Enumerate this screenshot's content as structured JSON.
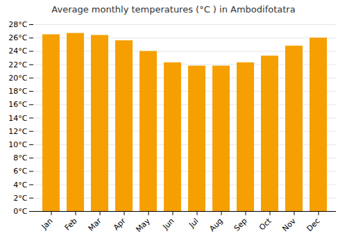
{
  "chart_data": {
    "type": "bar",
    "title": "Average monthly temperatures (°C ) in Ambodifotatra",
    "categories": [
      "Jan",
      "Feb",
      "Mar",
      "Apr",
      "May",
      "Jun",
      "Jul",
      "Aug",
      "Sep",
      "Oct",
      "Nov",
      "Dec"
    ],
    "values": [
      26.5,
      26.7,
      26.4,
      25.6,
      24.0,
      22.3,
      21.8,
      21.8,
      22.3,
      23.3,
      24.8,
      26.0
    ],
    "color": "#F5A000",
    "ylim": [
      0,
      28
    ],
    "yticks": [
      {
        "value": 0,
        "label": "0°C"
      },
      {
        "value": 2,
        "label": "2°C"
      },
      {
        "value": 4,
        "label": "4°C"
      },
      {
        "value": 6,
        "label": "6°C"
      },
      {
        "value": 8,
        "label": "8°C"
      },
      {
        "value": 10,
        "label": "10°C"
      },
      {
        "value": 12,
        "label": "12°C"
      },
      {
        "value": 14,
        "label": "14°C"
      },
      {
        "value": 16,
        "label": "16°C"
      },
      {
        "value": 18,
        "label": "18°C"
      },
      {
        "value": 20,
        "label": "20°C"
      },
      {
        "value": 22,
        "label": "22°C"
      },
      {
        "value": 24,
        "label": "24°C"
      },
      {
        "value": 26,
        "label": "26°C"
      },
      {
        "value": 28,
        "label": "28°C"
      }
    ],
    "grid": true
  }
}
